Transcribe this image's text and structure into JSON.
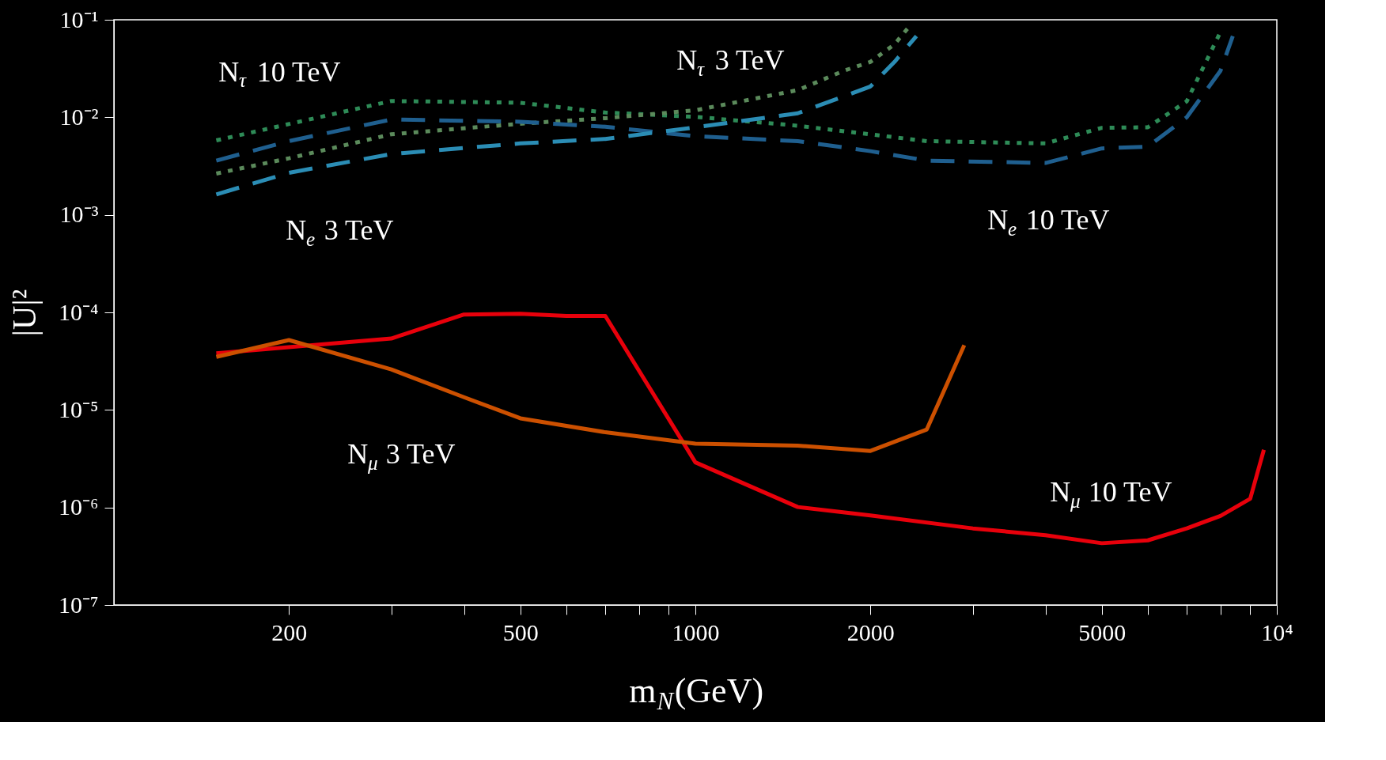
{
  "chart_data": {
    "type": "line",
    "xlabel": "m$_{N}$(GeV)",
    "ylabel": "|U|²",
    "log": "xy",
    "grid": false,
    "marker": "none",
    "xlim": [
      100,
      10000
    ],
    "ylim": [
      1e-07,
      0.1
    ],
    "xticks": [
      200,
      {
        "value": 300,
        "label": null
      },
      {
        "value": 400,
        "label": null
      },
      500,
      {
        "value": 600,
        "label": null
      },
      {
        "value": 700,
        "label": null
      },
      {
        "value": 800,
        "label": null
      },
      {
        "value": 900,
        "label": null
      },
      1000,
      2000,
      {
        "value": 3000,
        "label": null
      },
      {
        "value": 4000,
        "label": null
      },
      5000,
      {
        "value": 6000,
        "label": null
      },
      {
        "value": 7000,
        "label": null
      },
      {
        "value": 8000,
        "label": null
      },
      {
        "value": 9000,
        "label": null
      },
      {
        "value": 10000,
        "label": "10⁴"
      }
    ],
    "yticks": [
      {
        "value": 1e-07,
        "label": "10⁻⁷"
      },
      {
        "value": 1e-06,
        "label": "10⁻⁶"
      },
      {
        "value": 1e-05,
        "label": "10⁻⁵"
      },
      {
        "value": 0.0001,
        "label": "10⁻⁴"
      },
      {
        "value": 0.001,
        "label": "10⁻³"
      },
      {
        "value": 0.01,
        "label": "10⁻²"
      },
      {
        "value": 0.1,
        "label": "10⁻¹"
      }
    ],
    "series": [
      {
        "name": "N$_{τ}$ 10 TeV",
        "color": "#2e8b57",
        "line_style": "dotted",
        "x": [
          150,
          300,
          500,
          700,
          1000,
          1500,
          2500,
          4000,
          5000,
          6000,
          7000,
          8000
        ],
        "values": [
          0.0058,
          0.0147,
          0.0141,
          0.0112,
          0.0101,
          0.0082,
          0.0057,
          0.0054,
          0.0078,
          0.0079,
          0.0146,
          0.075
        ]
      },
      {
        "name": "N$_{τ}$ 3 TeV",
        "color": "#5b8a5b",
        "line_style": "dotted",
        "x": [
          150,
          200,
          300,
          500,
          700,
          1000,
          1500,
          1800,
          2000,
          2200,
          2350
        ],
        "values": [
          0.00265,
          0.0038,
          0.0067,
          0.0086,
          0.0098,
          0.0118,
          0.019,
          0.03,
          0.037,
          0.056,
          0.09
        ]
      },
      {
        "name": "N$_{e}$ 10 TeV",
        "color": "#1f5f8f",
        "line_style": "dashed",
        "x": [
          150,
          200,
          300,
          500,
          700,
          1000,
          1500,
          2000,
          2500,
          4000,
          5000,
          6000,
          7000,
          8000,
          8400
        ],
        "values": [
          0.0036,
          0.0057,
          0.0095,
          0.009,
          0.008,
          0.0064,
          0.0057,
          0.0045,
          0.0036,
          0.0034,
          0.0048,
          0.005,
          0.01,
          0.03,
          0.068
        ]
      },
      {
        "name": "N$_{e}$ 3 TeV",
        "color": "#2b8db5",
        "line_style": "dashed",
        "x": [
          150,
          200,
          300,
          500,
          700,
          1000,
          1500,
          2000,
          2200,
          2400
        ],
        "values": [
          0.00162,
          0.0027,
          0.0042,
          0.0054,
          0.006,
          0.0079,
          0.011,
          0.0207,
          0.037,
          0.068
        ]
      },
      {
        "name": "N$_{μ}$ 10 TeV",
        "color": "#e8000b",
        "line_style": "solid",
        "x": [
          150,
          300,
          400,
          500,
          600,
          700,
          1000,
          1500,
          2000,
          3000,
          4000,
          5000,
          6000,
          7000,
          8000,
          9000,
          9500
        ],
        "values": [
          3.8e-05,
          5.4e-05,
          9.5e-05,
          9.7e-05,
          9.2e-05,
          9.2e-05,
          2.9e-06,
          1.01e-06,
          8.3e-07,
          6.1e-07,
          5.2e-07,
          4.3e-07,
          4.6e-07,
          6.1e-07,
          8.2e-07,
          1.23e-06,
          3.9e-06
        ]
      },
      {
        "name": "N$_{μ}$ 3 TeV",
        "color": "#cc5000",
        "line_style": "solid",
        "x": [
          150,
          200,
          300,
          400,
          500,
          700,
          1000,
          1500,
          2000,
          2500,
          2900
        ],
        "values": [
          3.5e-05,
          5.2e-05,
          2.6e-05,
          1.35e-05,
          8.2e-06,
          5.9e-06,
          4.5e-06,
          4.3e-06,
          3.8e-06,
          6.3e-06,
          4.6e-05
        ]
      }
    ]
  }
}
